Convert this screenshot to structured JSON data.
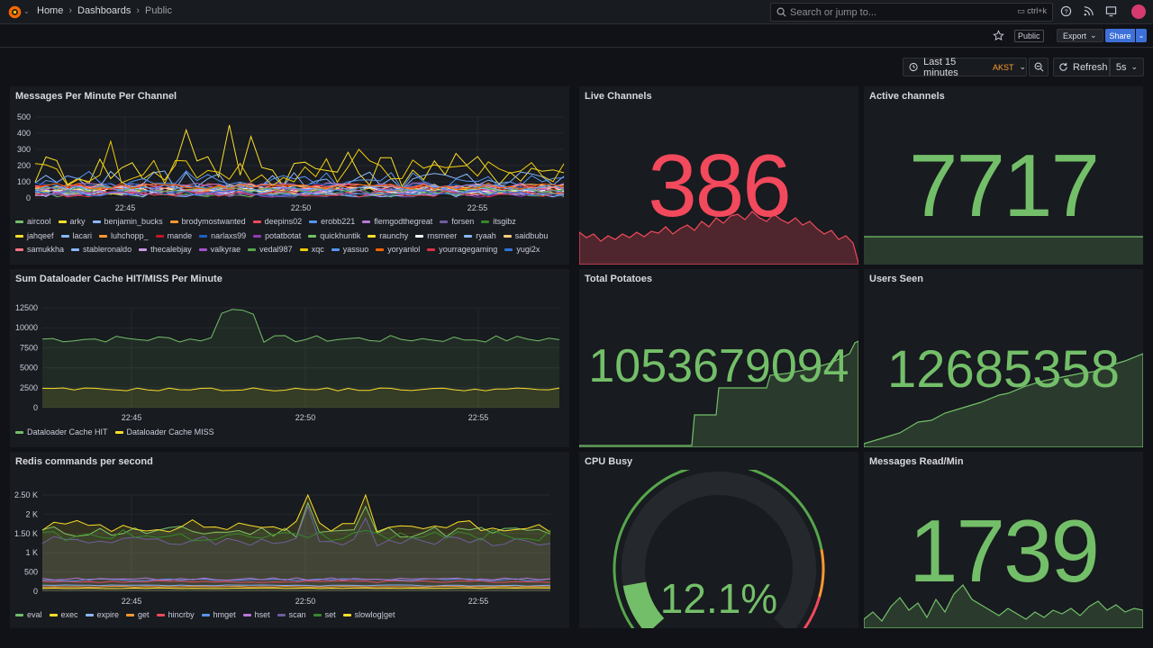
{
  "topbar": {
    "breadcrumbs": [
      "Home",
      "Dashboards",
      "Public"
    ],
    "search_placeholder": "Search or jump to...",
    "search_shortcut": "ctrl+k",
    "icons": [
      "help-icon",
      "news-icon",
      "display-icon",
      "user-avatar"
    ]
  },
  "actions": {
    "public_tag": "Public",
    "export_label": "Export",
    "share_label": "Share"
  },
  "time": {
    "range": "Last 15 minutes",
    "timezone": "AKST",
    "refresh_label": "Refresh",
    "interval": "5s"
  },
  "panels": {
    "messages": {
      "title": "Messages Per Minute Per Channel",
      "yticks": [
        "500",
        "400",
        "300",
        "200",
        "100",
        "0"
      ],
      "xticks": [
        "22:45",
        "22:50",
        "22:55"
      ],
      "legend": [
        {
          "name": "aircool",
          "color": "#73bf69"
        },
        {
          "name": "arky",
          "color": "#fade2a"
        },
        {
          "name": "benjamin_bucks",
          "color": "#8ab8ff"
        },
        {
          "name": "brodymostwanted",
          "color": "#ff9830"
        },
        {
          "name": "deepins02",
          "color": "#f2495c"
        },
        {
          "name": "erobb221",
          "color": "#5794f2"
        },
        {
          "name": "flemgodthegreat",
          "color": "#b877d9"
        },
        {
          "name": "forsen",
          "color": "#705da0"
        },
        {
          "name": "itsgibz",
          "color": "#37872d"
        },
        {
          "name": "jahqeef",
          "color": "#fade2a"
        },
        {
          "name": "lacari",
          "color": "#8ab8ff"
        },
        {
          "name": "luhchopp_",
          "color": "#ff9830"
        },
        {
          "name": "mande",
          "color": "#c4162a"
        },
        {
          "name": "narlaxs99",
          "color": "#1f60c4"
        },
        {
          "name": "potatbotat",
          "color": "#8f3bb8"
        },
        {
          "name": "quickhuntik",
          "color": "#73bf69"
        },
        {
          "name": "raunchy",
          "color": "#fade2a"
        },
        {
          "name": "rnsmeer",
          "color": "#ffffff"
        },
        {
          "name": "ryaah",
          "color": "#8ab8ff"
        },
        {
          "name": "saidbubu",
          "color": "#ffcb7d"
        },
        {
          "name": "samukkha",
          "color": "#ff7383"
        },
        {
          "name": "stableronaldo",
          "color": "#8ab8ff"
        },
        {
          "name": "thecalebjay",
          "color": "#ca95e5"
        },
        {
          "name": "valkyrae",
          "color": "#a352cc"
        },
        {
          "name": "vedal987",
          "color": "#56a64b"
        },
        {
          "name": "xqc",
          "color": "#f2cc0c"
        },
        {
          "name": "yassuo",
          "color": "#5794f2"
        },
        {
          "name": "yoryanlol",
          "color": "#fa6400"
        },
        {
          "name": "yourragegaming",
          "color": "#e02f44"
        },
        {
          "name": "yugi2x",
          "color": "#3274d9"
        }
      ]
    },
    "live_channels": {
      "title": "Live Channels",
      "value": "386",
      "color": "#f2495c"
    },
    "active_channels": {
      "title": "Active channels",
      "value": "7717",
      "color": "#73bf69"
    },
    "dataloader": {
      "title": "Sum Dataloader Cache HIT/MISS Per Minute",
      "yticks": [
        "12500",
        "10000",
        "7500",
        "5000",
        "2500",
        "0"
      ],
      "xticks": [
        "22:45",
        "22:50",
        "22:55"
      ],
      "legend": [
        {
          "name": "Dataloader Cache HIT",
          "color": "#73bf69"
        },
        {
          "name": "Dataloader Cache MISS",
          "color": "#fade2a"
        }
      ]
    },
    "total_potatoes": {
      "title": "Total Potatoes",
      "value": "1053679094",
      "color": "#73bf69"
    },
    "users_seen": {
      "title": "Users Seen",
      "value": "12685358",
      "color": "#73bf69"
    },
    "redis": {
      "title": "Redis commands per second",
      "yticks": [
        "2.50 K",
        "2 K",
        "1.50 K",
        "1 K",
        "500",
        "0"
      ],
      "xticks": [
        "22:45",
        "22:50",
        "22:55"
      ],
      "legend": [
        {
          "name": "eval",
          "color": "#73bf69"
        },
        {
          "name": "exec",
          "color": "#fade2a"
        },
        {
          "name": "expire",
          "color": "#8ab8ff"
        },
        {
          "name": "get",
          "color": "#ff9830"
        },
        {
          "name": "hincrby",
          "color": "#f2495c"
        },
        {
          "name": "hmget",
          "color": "#5794f2"
        },
        {
          "name": "hset",
          "color": "#b877d9"
        },
        {
          "name": "scan",
          "color": "#705da0"
        },
        {
          "name": "set",
          "color": "#37872d"
        },
        {
          "name": "slowlog|get",
          "color": "#fade2a"
        }
      ]
    },
    "cpu_busy": {
      "title": "CPU Busy",
      "value": "12.1%",
      "percent": 12.1,
      "color": "#73bf69"
    },
    "messages_read": {
      "title": "Messages Read/Min",
      "value": "1739",
      "color": "#73bf69"
    }
  }
}
